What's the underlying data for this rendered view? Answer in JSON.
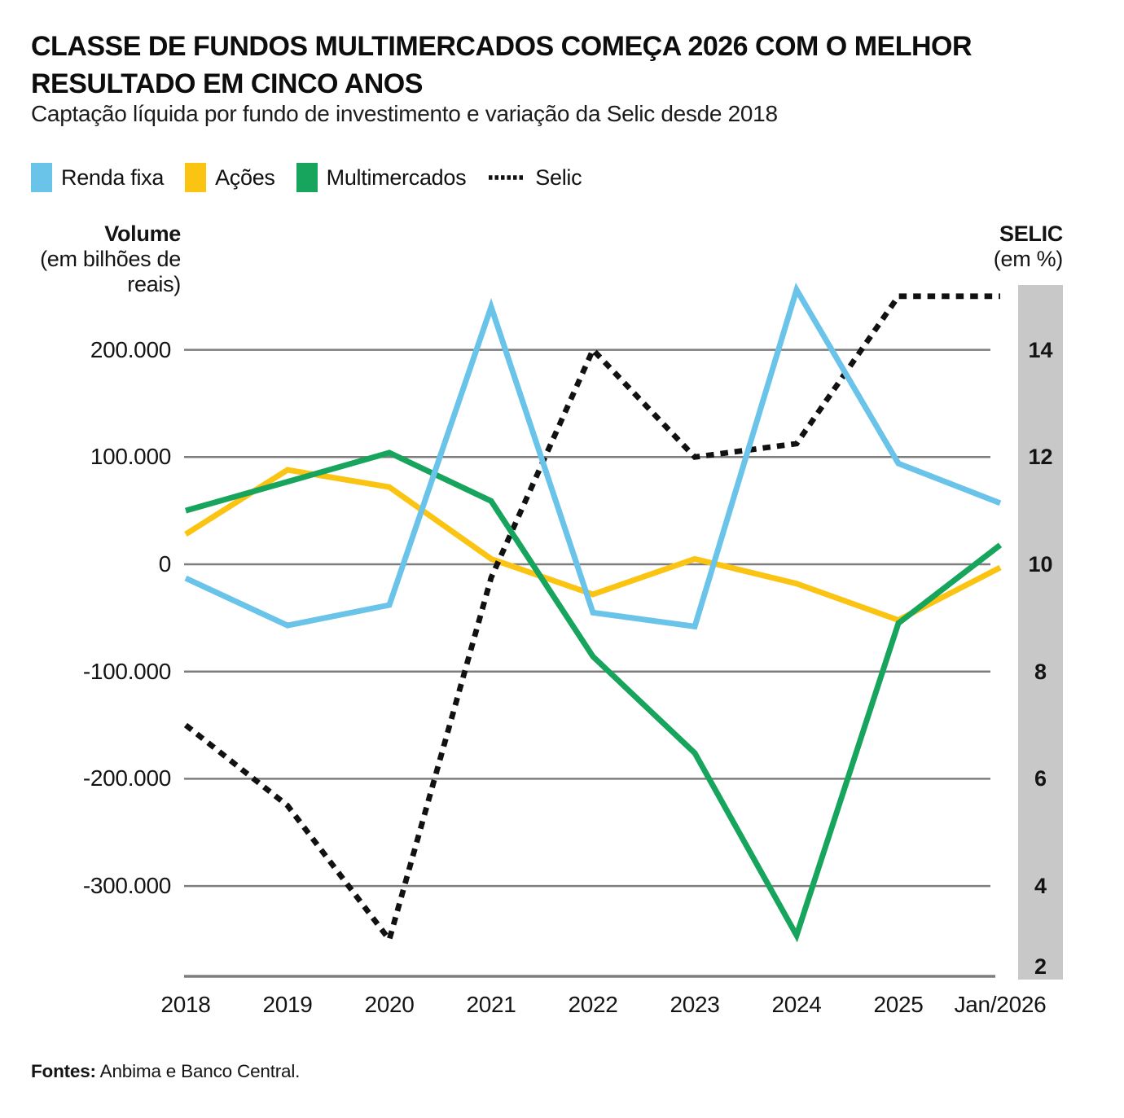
{
  "header": {
    "title_line1": "CLASSE DE FUNDOS MULTIMERCADOS COMEÇA 2026 COM O MELHOR",
    "title_line2": "RESULTADO EM CINCO ANOS",
    "subtitle": "Captação líquida por fundo de investimento e variação da Selic desde 2018"
  },
  "footer": {
    "source_label": "Fontes:",
    "source_text": " Anbima e Banco Central."
  },
  "colors": {
    "renda_fixa": "#6AC3E9",
    "acoes": "#FBC412",
    "multimercados": "#17A45C",
    "selic": "#111111",
    "gridline": "#7D7D7D",
    "selic_band": "#C8C8C8",
    "background": "#FFFFFF"
  },
  "chart_data": {
    "type": "line",
    "title": "CLASSE DE FUNDOS MULTIMERCADOS COMEÇA 2026 COM O MELHOR RESULTADO EM CINCO ANOS",
    "subtitle": "Captação líquida por fundo de investimento e variação da Selic desde 2018",
    "categories": [
      "2018",
      "2019",
      "2020",
      "2021",
      "2022",
      "2023",
      "2024",
      "2025",
      "Jan/2026"
    ],
    "series": [
      {
        "name": "Renda fixa",
        "slug": "renda-fixa",
        "color": "#6AC3E9",
        "style": "solid",
        "axis": "volume",
        "z": 4,
        "values": [
          -13000,
          -57000,
          -38000,
          240000,
          -45000,
          -58000,
          256000,
          94000,
          57000
        ]
      },
      {
        "name": "Ações",
        "slug": "acoes",
        "color": "#FBC412",
        "style": "solid",
        "axis": "volume",
        "z": 1,
        "values": [
          28000,
          88000,
          72000,
          5000,
          -28000,
          5000,
          -18000,
          -52000,
          -3000
        ]
      },
      {
        "name": "Multimercados",
        "slug": "multimercados",
        "color": "#17A45C",
        "style": "solid",
        "axis": "volume",
        "z": 3,
        "values": [
          50000,
          77000,
          104000,
          59000,
          -86000,
          -176000,
          -346000,
          -55000,
          18000
        ]
      },
      {
        "name": "Selic",
        "slug": "selic",
        "color": "#111111",
        "style": "dotted",
        "axis": "selic",
        "z": 2,
        "values": [
          7,
          5.5,
          3,
          9.75,
          14,
          12,
          12.25,
          15,
          15
        ]
      }
    ],
    "volume_axis": {
      "title": "Volume",
      "unit": "(em bilhões de reais)",
      "ticks": [
        200000,
        100000,
        0,
        -100000,
        -200000,
        -300000
      ],
      "tick_labels": [
        "200.000",
        "100.000",
        "0",
        "-100.000",
        "-200.000",
        "-300.000"
      ]
    },
    "selic_axis": {
      "title": "SELIC",
      "unit": "(em %)",
      "ticks": [
        14,
        12,
        10,
        8,
        6,
        4,
        2
      ]
    },
    "grid": true,
    "legend_position": "top-left"
  }
}
